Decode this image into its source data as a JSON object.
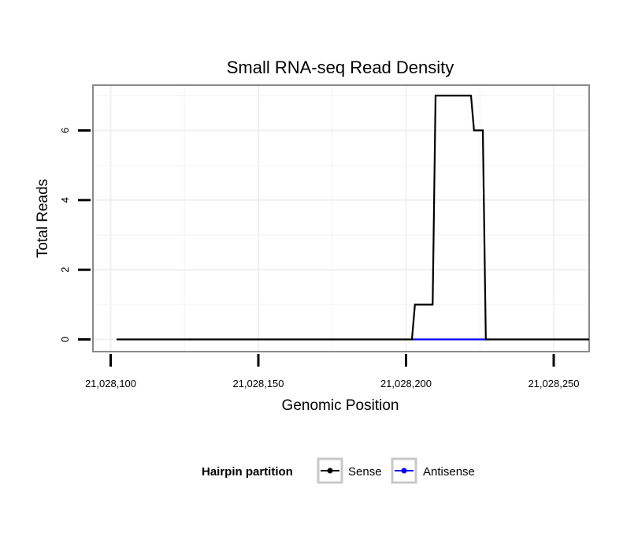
{
  "chart_data": {
    "type": "line",
    "title": "Small RNA-seq Read Density",
    "xlabel": "Genomic Position",
    "ylabel": "Total Reads",
    "xlim": [
      21028094,
      21028262
    ],
    "ylim": [
      -0.35,
      7.3
    ],
    "xticks": [
      21028100,
      21028150,
      21028200,
      21028250
    ],
    "xtick_labels": [
      "21,028,100",
      "21,028,150",
      "21,028,200",
      "21,028,250"
    ],
    "yticks": [
      0,
      2,
      4,
      6
    ],
    "ytick_labels": [
      "0",
      "2",
      "4",
      "6"
    ],
    "grid": true,
    "legend_position": "bottom",
    "legend_title": "Hairpin partition",
    "series": [
      {
        "name": "Sense",
        "color": "#000000",
        "x": [
          21028102,
          21028202,
          21028203,
          21028209,
          21028210,
          21028222,
          21028223,
          21028226,
          21028227,
          21028262
        ],
        "y": [
          0,
          0,
          1,
          1,
          7,
          7,
          6,
          6,
          0,
          0
        ]
      },
      {
        "name": "Antisense",
        "color": "#0000ff",
        "x": [
          21028202,
          21028228
        ],
        "y": [
          0,
          0
        ]
      }
    ]
  }
}
